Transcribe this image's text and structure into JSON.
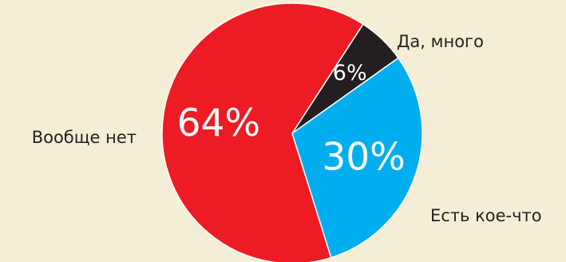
{
  "chart_data": {
    "type": "pie",
    "slices": [
      {
        "label": "Да, много",
        "value": 6,
        "value_label": "6%",
        "color": "#231f20"
      },
      {
        "label": "Есть кое-что",
        "value": 30,
        "value_label": "30%",
        "color": "#00aeef"
      },
      {
        "label": "Вообще нет",
        "value": 64,
        "value_label": "64%",
        "color": "#ed1c24"
      }
    ],
    "start": "clockwise from upper right",
    "background": "#f5eed6"
  }
}
